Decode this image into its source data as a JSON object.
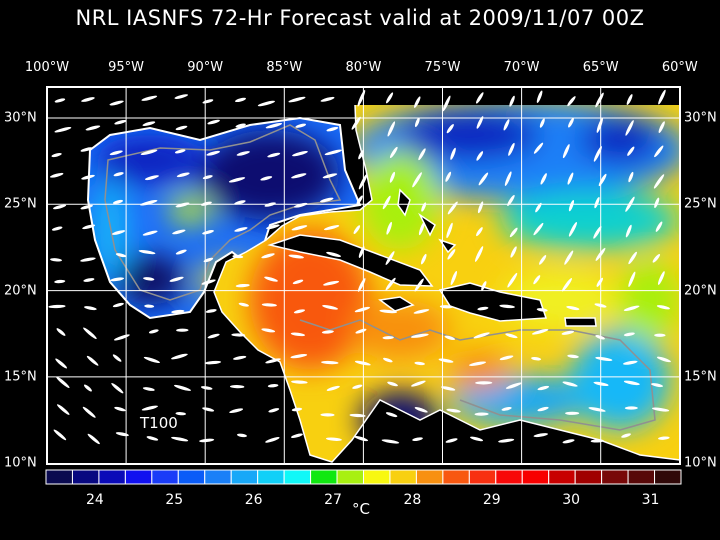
{
  "title": "NRL IASNFS  72-Hr Forecast valid at 2009/11/07 00Z",
  "lon_labels": [
    "100°W",
    "95°W",
    "90°W",
    "85°W",
    "80°W",
    "75°W",
    "70°W",
    "65°W",
    "60°W"
  ],
  "lat_labels": [
    "30°N",
    "25°N",
    "20°N",
    "15°N",
    "10°N"
  ],
  "map_annotation": "T100",
  "colorbar": {
    "labels": [
      "24",
      "25",
      "26",
      "27",
      "28",
      "29",
      "30",
      "31"
    ],
    "unit": "°C",
    "colors": [
      "#0a0a50",
      "#080880",
      "#0a0ab8",
      "#1010f0",
      "#1a3cf8",
      "#0a5cf8",
      "#1a80f8",
      "#18a8f8",
      "#10d0f8",
      "#10f8f8",
      "#10e810",
      "#a8f010",
      "#f8f810",
      "#f8d010",
      "#f89010",
      "#f85810",
      "#f83010",
      "#f80808",
      "#f80000",
      "#c80000",
      "#a00000",
      "#780808",
      "#580808",
      "#300808"
    ]
  }
}
